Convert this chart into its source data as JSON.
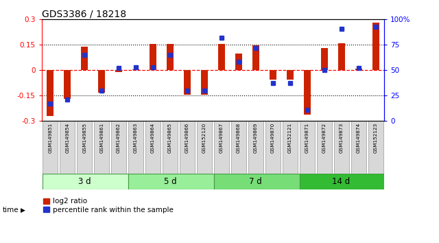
{
  "title": "GDS3386 / 18218",
  "samples": [
    "GSM149851",
    "GSM149854",
    "GSM149855",
    "GSM149861",
    "GSM149862",
    "GSM149863",
    "GSM149864",
    "GSM149865",
    "GSM149866",
    "GSM152120",
    "GSM149867",
    "GSM149868",
    "GSM149869",
    "GSM149870",
    "GSM152121",
    "GSM149871",
    "GSM149872",
    "GSM149873",
    "GSM149874",
    "GSM152123"
  ],
  "log2_ratio": [
    -0.27,
    -0.17,
    0.14,
    -0.135,
    -0.01,
    0.005,
    0.155,
    0.155,
    -0.145,
    -0.145,
    0.155,
    0.1,
    0.145,
    -0.055,
    -0.055,
    -0.265,
    0.13,
    0.16,
    0.01,
    0.28
  ],
  "percentile": [
    17,
    21,
    65,
    30,
    52,
    53,
    53,
    65,
    30,
    30,
    82,
    58,
    72,
    37,
    37,
    11,
    50,
    91,
    52,
    93
  ],
  "groups": [
    {
      "label": "3 d",
      "start": 0,
      "end": 5,
      "color": "#ccffcc"
    },
    {
      "label": "5 d",
      "start": 5,
      "end": 10,
      "color": "#99ee99"
    },
    {
      "label": "7 d",
      "start": 10,
      "end": 15,
      "color": "#77dd77"
    },
    {
      "label": "14 d",
      "start": 15,
      "end": 20,
      "color": "#33bb33"
    }
  ],
  "ylim": [
    -0.3,
    0.3
  ],
  "yticks_left": [
    -0.3,
    -0.15,
    0,
    0.15,
    0.3
  ],
  "yticks_right_vals": [
    0,
    25,
    50,
    75,
    100
  ],
  "yticks_right_labels": [
    "0",
    "25",
    "50",
    "75",
    "100%"
  ],
  "hlines_dotted": [
    -0.15,
    0.15
  ],
  "hline_zero": 0,
  "bar_color": "#cc2200",
  "dot_color": "#2233cc",
  "background_color": "#ffffff",
  "bar_width": 0.4,
  "dot_size": 4.5
}
